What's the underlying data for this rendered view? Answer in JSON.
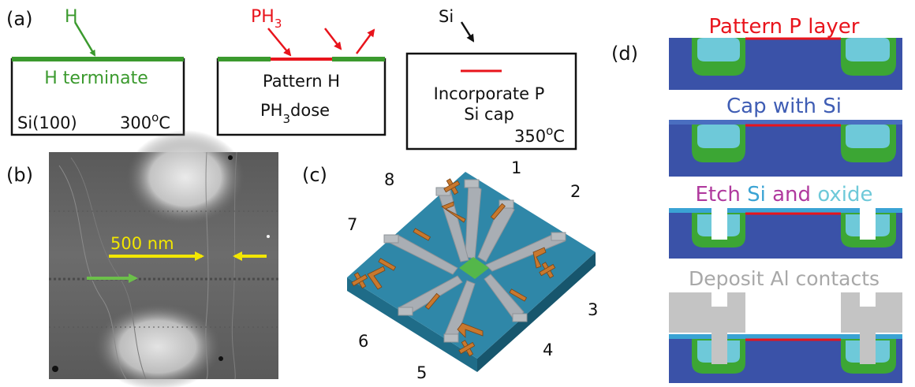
{
  "panel_labels": {
    "a": "(a)",
    "b": "(b)",
    "c": "(c)",
    "d": "(d)"
  },
  "panel_a": {
    "step1": {
      "arrow_label": "H",
      "box_text": "H terminate",
      "substrate": "Si(100)",
      "temperature": "300",
      "temp_unit": "°C"
    },
    "step2": {
      "arrow_label_main": "PH",
      "arrow_label_sub": "3",
      "line1": "Pattern H",
      "line2_main": "PH",
      "line2_sub": "3",
      "line2_rest": "dose"
    },
    "step3": {
      "arrow_label": "Si",
      "line1": "Incorporate P",
      "line2": "Si cap",
      "temperature": "350",
      "temp_unit": "°C"
    }
  },
  "panel_b": {
    "scale_label": "500 nm"
  },
  "panel_c": {
    "contacts": [
      "1",
      "2",
      "3",
      "4",
      "5",
      "6",
      "7",
      "8"
    ]
  },
  "panel_d": {
    "step1": "Pattern P layer",
    "step2": "Cap with Si",
    "step3": {
      "part1": "Etch ",
      "part2": "Si",
      "part3": " and ",
      "part4": "oxide"
    },
    "step4": "Deposit Al contacts"
  },
  "colors": {
    "green": "#3b9a2e",
    "red": "#e8141c",
    "black": "#111111",
    "yellow": "#f2e600",
    "substrate_blue": "#3a52a8",
    "oxide_cyan": "#6ec9d9",
    "green_well": "#3ca634",
    "cap_blue": "#4a6ec0",
    "etch_magenta": "#b03a9e",
    "al_gray": "#c4c4c4",
    "chip_teal": "#2f87a8",
    "pad_orange": "#c8782e"
  }
}
